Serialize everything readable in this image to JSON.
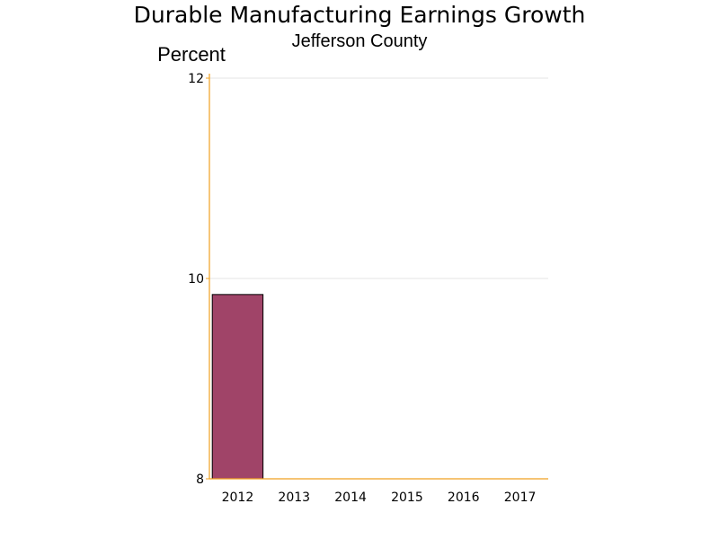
{
  "chart_data": {
    "type": "bar",
    "title": "Durable Manufacturing Earnings Growth",
    "subtitle": "Jefferson County",
    "ylabel": "Percent",
    "xlabel": "",
    "categories": [
      "2012",
      "2013",
      "2014",
      "2015",
      "2016",
      "2017"
    ],
    "values": [
      9.84,
      null,
      null,
      null,
      null,
      null
    ],
    "ylim": [
      8,
      12
    ],
    "yticks": [
      "8",
      "10",
      "12"
    ],
    "grid": true,
    "legend": "none",
    "colors": {
      "bar_fill": "#a04468",
      "bar_stroke": "#000000",
      "axis": "#f0a020",
      "grid": "#e4e4e4"
    }
  }
}
